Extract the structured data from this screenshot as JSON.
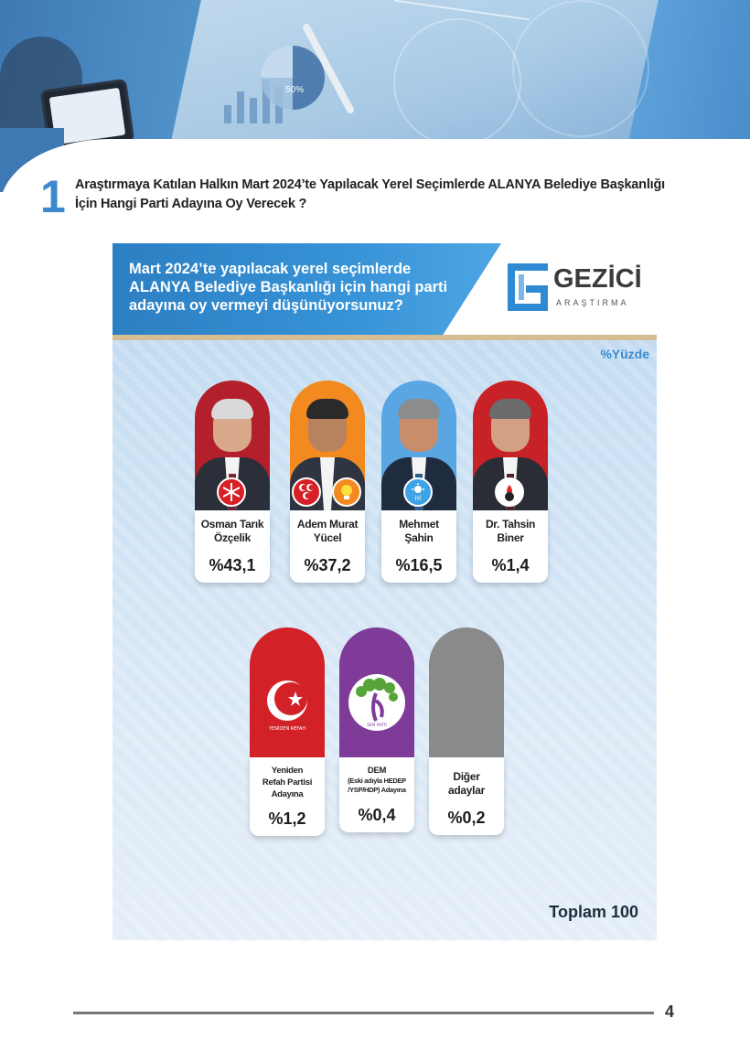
{
  "hero": {
    "chart_label": "50%"
  },
  "question": {
    "number": "1",
    "line1": "Araştırmaya Katılan Halkın Mart 2024’te Yapılacak Yerel Seçimlerde ALANYA Belediye Başkanlığı",
    "line2": "İçin Hangi Parti Adayına Oy Verecek ?"
  },
  "card": {
    "title_line1": "Mart 2024’te yapılacak yerel seçimlerde",
    "title_line2": "ALANYA Belediye Başkanlığı için hangi parti",
    "title_line3": "adayına oy vermeyi düşünüyorsunuz?",
    "logo_word": "GEZİCİ",
    "logo_sub": "ARAŞTIRMA",
    "unit_label": "%Yüzde",
    "total_label": "Toplam 100"
  },
  "candidates": [
    {
      "name1": "Osman Tarık",
      "name2": "Özçelik",
      "name3": "",
      "pct": "%43,1",
      "bg": "#b3202b",
      "party_icon": "chp-six-arrows-icon"
    },
    {
      "name1": "Adem Murat",
      "name2": "Yücel",
      "name3": "",
      "pct": "%37,2",
      "bg": "#f28a1f",
      "party_icon": "mhp-crescents-icon"
    },
    {
      "name1": "Mehmet",
      "name2": "Şahin",
      "name3": "",
      "pct": "%16,5",
      "bg": "#5aa6e3",
      "party_icon": "iyi-sun-icon"
    },
    {
      "name1": "Dr. Tahsin",
      "name2": "Biner",
      "name3": "",
      "pct": "%1,4",
      "bg": "#c62228",
      "party_icon": "torch-icon"
    },
    {
      "name1": "Yeniden",
      "name2": "Refah Partisi",
      "name3": "Adayına",
      "pct": "%1,2",
      "bg": "#d32128",
      "party_icon": "yeniden-refah-logo-icon",
      "logo_text": "YENİDEN REFAH"
    },
    {
      "name1": "DEM",
      "name2": "(Eski adıyla HEDEP",
      "name3": "/YSP/HDP) Adayına",
      "pct": "%0,4",
      "bg": "#7e3b98",
      "party_icon": "dem-tree-logo-icon",
      "logo_text": "DEM PARTİ"
    },
    {
      "name1": "Diğer",
      "name2": "adaylar",
      "name3": "",
      "pct": "%0,2",
      "bg": "#8a8a8a",
      "party_icon": ""
    }
  ],
  "chart_data": {
    "type": "bar",
    "categories": [
      "Osman Tarık Özçelik",
      "Adem Murat Yücel",
      "Mehmet Şahin",
      "Dr. Tahsin Biner",
      "Yeniden Refah Partisi Adayına",
      "DEM (Eski adıyla HEDEP /YSP/HDP) Adayına",
      "Diğer adaylar"
    ],
    "values": [
      43.1,
      37.2,
      16.5,
      1.4,
      1.2,
      0.4,
      0.2
    ],
    "ylabel": "%Yüzde"
  },
  "footer": {
    "page_number": "4"
  }
}
